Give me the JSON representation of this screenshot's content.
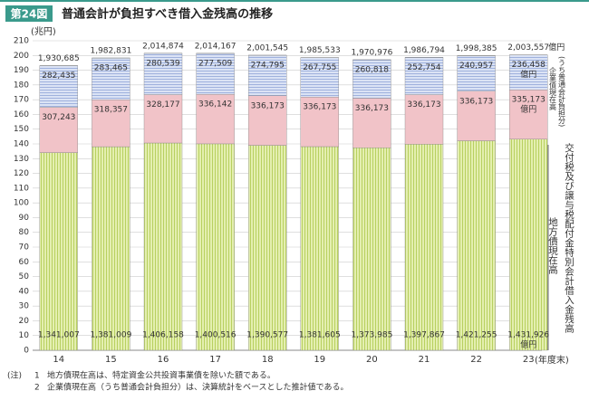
{
  "header": {
    "badge": "第24図",
    "title": "普通会計が負担すべき借入金残高の推移"
  },
  "chart_data": {
    "type": "stacked-bar",
    "y_label": "(兆円)",
    "x_label": "(年度末)",
    "unit_label": "億円",
    "categories": [
      "14",
      "15",
      "16",
      "17",
      "18",
      "19",
      "20",
      "21",
      "22",
      "23"
    ],
    "ylim": [
      0,
      210
    ],
    "yticks": [
      0,
      10,
      20,
      30,
      40,
      50,
      60,
      70,
      80,
      90,
      100,
      110,
      120,
      130,
      140,
      150,
      160,
      170,
      180,
      190,
      200,
      210
    ],
    "grid": true,
    "series": [
      {
        "name": "地方債現在高",
        "color": "#d6e68c",
        "values": [
          134.1007,
          138.1009,
          140.6158,
          140.0516,
          139.0577,
          138.1605,
          137.3985,
          139.7867,
          142.1255,
          143.1926
        ],
        "value_labels": [
          "1,341,007",
          "1,381,009",
          "1,406,158",
          "1,400,516",
          "1,390,577",
          "1,381,605",
          "1,373,985",
          "1,397,867",
          "1,421,255",
          "1,431,926"
        ]
      },
      {
        "name": "交付税及び譲与税配付金特別会計借入金残高",
        "color": "#f1c3c8",
        "values": [
          30.7243,
          31.8357,
          32.8177,
          33.6142,
          33.6173,
          33.6173,
          33.6173,
          33.6173,
          33.6173,
          33.5173
        ],
        "value_labels": [
          "307,243",
          "318,357",
          "328,177",
          "336,142",
          "336,173",
          "336,173",
          "336,173",
          "336,173",
          "336,173",
          "335,173"
        ]
      },
      {
        "name": "企業債現在高",
        "subnote": "(うち普通会計負担分)",
        "color": "#c8d3ee",
        "values": [
          28.2435,
          28.3465,
          28.0539,
          27.7509,
          27.4795,
          26.7755,
          26.0818,
          25.2754,
          24.0957,
          23.6458
        ],
        "value_labels": [
          "282,435",
          "283,465",
          "280,539",
          "277,509",
          "274,795",
          "267,755",
          "260,818",
          "252,754",
          "240,957",
          "236,458"
        ]
      }
    ],
    "totals": {
      "values": [
        193.0685,
        198.2831,
        201.4874,
        201.4167,
        200.1545,
        198.5533,
        197.0976,
        198.6794,
        199.8385,
        200.3557
      ],
      "value_labels": [
        "1,930,685",
        "1,982,831",
        "2,014,874",
        "2,014,167",
        "2,001,545",
        "1,985,533",
        "1,970,976",
        "1,986,794",
        "1,998,385",
        "2,003,557"
      ]
    }
  },
  "notes": {
    "label": "(注)",
    "items": [
      {
        "num": "1",
        "text": "地方債現在高は、特定資金公共投資事業債を除いた額である。"
      },
      {
        "num": "2",
        "text": "企業債現在高（うち普通会計負担分）は、決算統計をベースとした推計値である。"
      }
    ]
  }
}
